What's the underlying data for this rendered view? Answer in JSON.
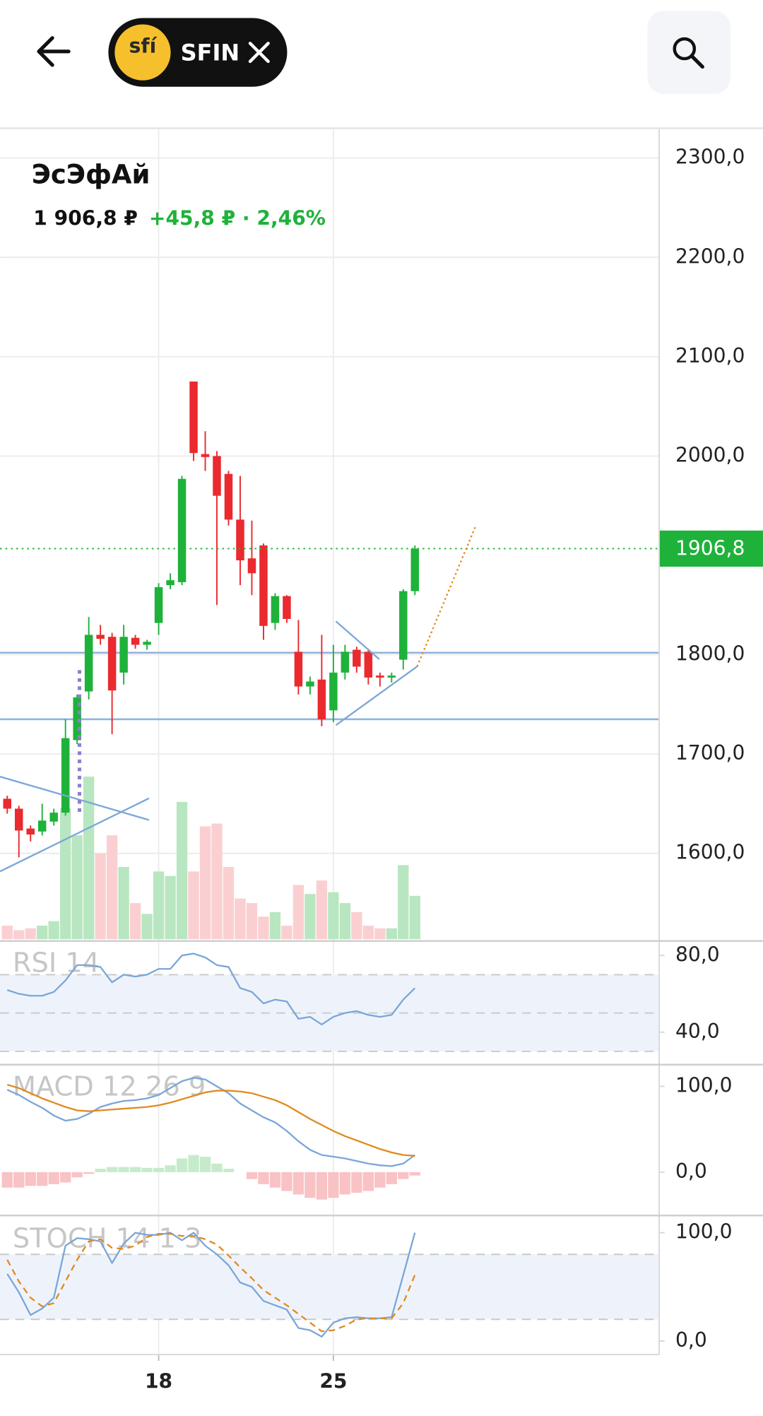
{
  "header": {
    "logo": "sfí",
    "ticker": "SFIN"
  },
  "chart_data": [
    {
      "type": "candlestick",
      "title": "ЭсЭфАй",
      "price_label": "1 906,8 ₽",
      "change_label": "+45,8 ₽ · 2,46%",
      "categories": [
        null,
        null,
        null,
        null,
        null,
        null,
        null,
        null,
        null,
        null,
        null,
        null,
        null,
        "18",
        null,
        null,
        null,
        null,
        null,
        null,
        null,
        null,
        null,
        null,
        null,
        null,
        null,
        null,
        "25",
        null,
        null,
        null,
        null,
        null,
        null,
        null
      ],
      "open": [
        1655,
        1645,
        1625,
        1622,
        1632,
        1641,
        1714,
        1763,
        1820,
        1818,
        1782,
        1817,
        1810,
        1832,
        1870,
        1873,
        2075,
        2002,
        2000,
        1982,
        1936,
        1897,
        1910,
        1832,
        1859,
        1803,
        1768,
        1775,
        1744,
        1782,
        1805,
        1803,
        1779,
        1777,
        1795,
        1864
      ],
      "high": [
        1658,
        1648,
        1628,
        1650,
        1645,
        1735,
        1760,
        1838,
        1830,
        1822,
        1830,
        1820,
        1815,
        1872,
        1882,
        1980,
        2075,
        2025,
        2005,
        1985,
        1980,
        1935,
        1912,
        1862,
        1860,
        1835,
        1778,
        1820,
        1810,
        1810,
        1808,
        1806,
        1782,
        1782,
        1866,
        1910
      ],
      "low": [
        1640,
        1596,
        1612,
        1618,
        1628,
        1638,
        1710,
        1755,
        1810,
        1720,
        1770,
        1806,
        1805,
        1820,
        1866,
        1870,
        1995,
        1985,
        1850,
        1930,
        1870,
        1860,
        1815,
        1825,
        1832,
        1760,
        1760,
        1728,
        1732,
        1775,
        1782,
        1770,
        1768,
        1772,
        1785,
        1860
      ],
      "close": [
        1645,
        1623,
        1619,
        1633,
        1641,
        1716,
        1757,
        1820,
        1816,
        1764,
        1818,
        1810,
        1813,
        1868,
        1875,
        1977,
        2003,
        1999,
        1960,
        1936,
        1895,
        1882,
        1829,
        1859,
        1836,
        1768,
        1773,
        1735,
        1782,
        1803,
        1788,
        1777,
        1777,
        1779,
        1864,
        1906.8
      ],
      "volume": [
        15,
        10,
        12,
        15,
        20,
        145,
        115,
        180,
        95,
        115,
        80,
        40,
        28,
        75,
        70,
        152,
        75,
        125,
        128,
        80,
        45,
        40,
        25,
        30,
        15,
        60,
        50,
        65,
        52,
        40,
        30,
        15,
        12,
        12,
        82,
        48
      ],
      "up_color": "#1fb23a",
      "down_color": "#ea2a2f",
      "volume_up_color": "#b8e6c0",
      "volume_down_color": "#fbcfd1",
      "level_color": "#8fb3dc",
      "levels": [
        1802,
        1735
      ],
      "last": {
        "value": 1906.8,
        "label": "1906,8"
      },
      "ylim": [
        1511.8,
        2329.1
      ],
      "yticks": [
        {
          "value": 2300,
          "label": "2300,0"
        },
        {
          "value": 2200,
          "label": "2200,0"
        },
        {
          "value": 2100,
          "label": "2100,0"
        },
        {
          "value": 2000,
          "label": "2000,0"
        },
        {
          "value": 1800,
          "label": "1800,0"
        },
        {
          "value": 1700,
          "label": "1700,0"
        },
        {
          "value": 1600,
          "label": "1600,0"
        }
      ],
      "grid": true
    },
    {
      "type": "line",
      "title": "RSI 14",
      "lines": [
        {
          "color": "#7aa6d8",
          "values": [
            62,
            60,
            59,
            59,
            61,
            67,
            75,
            75,
            74,
            66,
            70,
            69,
            70,
            73,
            73,
            80,
            81,
            79,
            75,
            74,
            63,
            61,
            55,
            57,
            56,
            47,
            48,
            44,
            48,
            50,
            51,
            49,
            48,
            49,
            57,
            63
          ]
        }
      ],
      "levels": [
        30,
        50,
        70
      ],
      "ylim": [
        23.5,
        87.1
      ],
      "yticks": [
        {
          "value": 80,
          "label": "80,0"
        },
        {
          "value": 40,
          "label": "40,0"
        }
      ]
    },
    {
      "type": "macd",
      "title": "MACD 12 26 9",
      "lines": [
        {
          "color": "#7aa6d8",
          "values": [
            96,
            90,
            82,
            75,
            66,
            60,
            62,
            68,
            76,
            80,
            83,
            84,
            86,
            90,
            98,
            106,
            110,
            108,
            100,
            92,
            80,
            72,
            64,
            58,
            48,
            36,
            26,
            20,
            18,
            16,
            13,
            10,
            8,
            7,
            10,
            20
          ]
        },
        {
          "color": "#e08a1e",
          "values": [
            102,
            98,
            92,
            86,
            81,
            76,
            72,
            71,
            72,
            73,
            74,
            75,
            76,
            78,
            81,
            85,
            89,
            93,
            95,
            95,
            94,
            92,
            88,
            84,
            78,
            70,
            62,
            55,
            48,
            42,
            37,
            32,
            27,
            23,
            20,
            19
          ]
        }
      ],
      "histogram": {
        "up_color": "#c6ebcc",
        "down_color": "#f9c2c5",
        "values": [
          -18,
          -18,
          -16,
          -16,
          -14,
          -12,
          -6,
          -2,
          4,
          6,
          6,
          6,
          5,
          5,
          8,
          16,
          20,
          18,
          10,
          4,
          0,
          -8,
          -14,
          -18,
          -22,
          -26,
          -30,
          -32,
          -30,
          -26,
          -24,
          -22,
          -18,
          -14,
          -8,
          -4
        ]
      },
      "ylim": [
        -49.5,
        124.2
      ],
      "yticks": [
        {
          "value": 100,
          "label": "100,0"
        },
        {
          "value": 0,
          "label": "0,0"
        }
      ]
    },
    {
      "type": "stochastic",
      "title": "STOCH 14 1 3",
      "lines": [
        {
          "color": "#7aa6d8",
          "values": [
            62,
            45,
            24,
            30,
            40,
            88,
            95,
            94,
            92,
            72,
            90,
            100,
            98,
            98,
            100,
            93,
            100,
            88,
            80,
            70,
            54,
            50,
            37,
            33,
            29,
            12,
            10,
            4,
            17,
            21,
            22,
            21,
            21,
            22,
            61,
            100
          ]
        },
        {
          "color": "#e08a1e",
          "dashed": true,
          "values": [
            75,
            55,
            40,
            32,
            35,
            55,
            75,
            92,
            94,
            86,
            85,
            88,
            96,
            99,
            99,
            97,
            97,
            94,
            89,
            79,
            68,
            58,
            47,
            40,
            33,
            25,
            17,
            9,
            10,
            14,
            20,
            21,
            21,
            21,
            35,
            61
          ]
        }
      ],
      "levels": [
        20,
        80
      ],
      "ylim": [
        -12.5,
        114.2
      ],
      "yticks": [
        {
          "value": 100,
          "label": "100,0"
        },
        {
          "value": 0,
          "label": "0,0"
        }
      ]
    }
  ]
}
